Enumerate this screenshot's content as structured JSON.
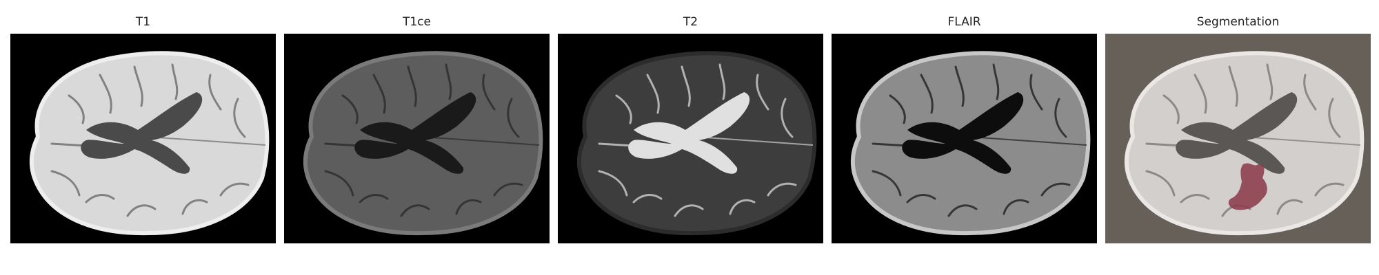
{
  "panels": [
    {
      "title": "T1",
      "modality": "t1"
    },
    {
      "title": "T1ce",
      "modality": "t1ce"
    },
    {
      "title": "T2",
      "modality": "t2"
    },
    {
      "title": "FLAIR",
      "modality": "flair"
    },
    {
      "title": "Segmentation",
      "modality": "segmentation"
    }
  ],
  "colors": {
    "background": "#000000",
    "segmentation_background": "#666059",
    "lesion_overlay": "#8e3f4f"
  },
  "modalities": {
    "t1": {
      "brain": "#d9d9d9",
      "ventricle": "#4a4a4a",
      "cortex_edge": "#eeeeee",
      "sulci": "#6a6a6a"
    },
    "t1ce": {
      "brain": "#5d5d5d",
      "ventricle": "#1a1a1a",
      "cortex_edge": "#7a7a7a",
      "sulci": "#2a2a2a"
    },
    "t2": {
      "brain": "#3d3d3d",
      "ventricle": "#e0e0e0",
      "cortex_edge": "#2c2c2c",
      "sulci": "#d0d0d0"
    },
    "flair": {
      "brain": "#8c8c8c",
      "ventricle": "#0d0d0d",
      "cortex_edge": "#c7c7c7",
      "sulci": "#1f1f1f"
    },
    "segmentation": {
      "brain": "#d3cfcc",
      "ventricle": "#5a5754",
      "cortex_edge": "#eae7e4",
      "sulci": "#7b7673"
    }
  }
}
